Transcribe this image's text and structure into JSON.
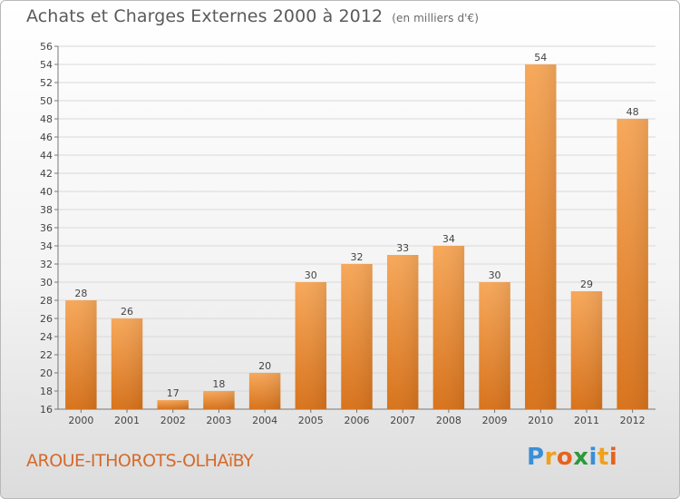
{
  "header": {
    "title": "Achats et Charges Externes 2000 à 2012",
    "subtitle": "(en milliers d'€)"
  },
  "footer": {
    "commune": "AROUE-ITHOROTS-OLHAïBY",
    "logo": {
      "text": "Proxiti",
      "letters": [
        "P",
        "r",
        "o",
        "x",
        "i",
        "t",
        "i"
      ],
      "colors": [
        "#3a8fd6",
        "#f0a01c",
        "#e8621c",
        "#2a9a3a",
        "#3a8fd6",
        "#f0a01c",
        "#e8621c"
      ]
    }
  },
  "chart_data": {
    "type": "bar",
    "title": "Achats et Charges Externes 2000 à 2012",
    "subtitle": "(en milliers d'€)",
    "categories": [
      "2000",
      "2001",
      "2002",
      "2003",
      "2004",
      "2005",
      "2006",
      "2007",
      "2008",
      "2009",
      "2010",
      "2011",
      "2012"
    ],
    "values": [
      28,
      26,
      17,
      18,
      20,
      30,
      32,
      33,
      34,
      30,
      54,
      29,
      48
    ],
    "ylim": [
      16,
      56
    ],
    "yticks": [
      16,
      18,
      20,
      22,
      24,
      26,
      28,
      30,
      32,
      34,
      36,
      38,
      40,
      42,
      44,
      46,
      48,
      50,
      52,
      54,
      56
    ],
    "grid": true,
    "bar_color": "#f08a2c",
    "xlabel": "",
    "ylabel": ""
  }
}
